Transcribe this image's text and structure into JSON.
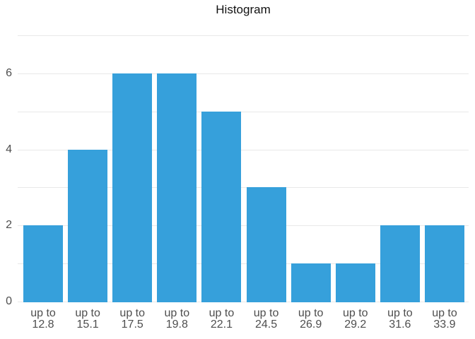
{
  "title": "Histogram",
  "colors": {
    "bar": "#36a0db",
    "grid": "#e8e8e8",
    "axis_label": "#4e4e4e",
    "title": "#111111",
    "background": "#ffffff"
  },
  "chart_data": {
    "type": "bar",
    "title": "Histogram",
    "categories": [
      "up to 12.8",
      "up to 15.1",
      "up to 17.5",
      "up to 19.8",
      "up to 22.1",
      "up to 24.5",
      "up to 26.9",
      "up to 29.2",
      "up to 31.6",
      "up to 33.9"
    ],
    "category_line1": "up to",
    "category_line2": [
      "12.8",
      "15.1",
      "17.5",
      "19.8",
      "22.1",
      "24.5",
      "26.9",
      "29.2",
      "31.6",
      "33.9"
    ],
    "values": [
      2,
      4,
      6,
      6,
      5,
      3,
      1,
      1,
      2,
      2
    ],
    "xlabel": "",
    "ylabel": "",
    "ylim": [
      0,
      7
    ],
    "y_gridline_step": 1,
    "y_tick_labels": [
      0,
      2,
      4,
      6
    ],
    "grid": true,
    "legend_position": "none"
  }
}
